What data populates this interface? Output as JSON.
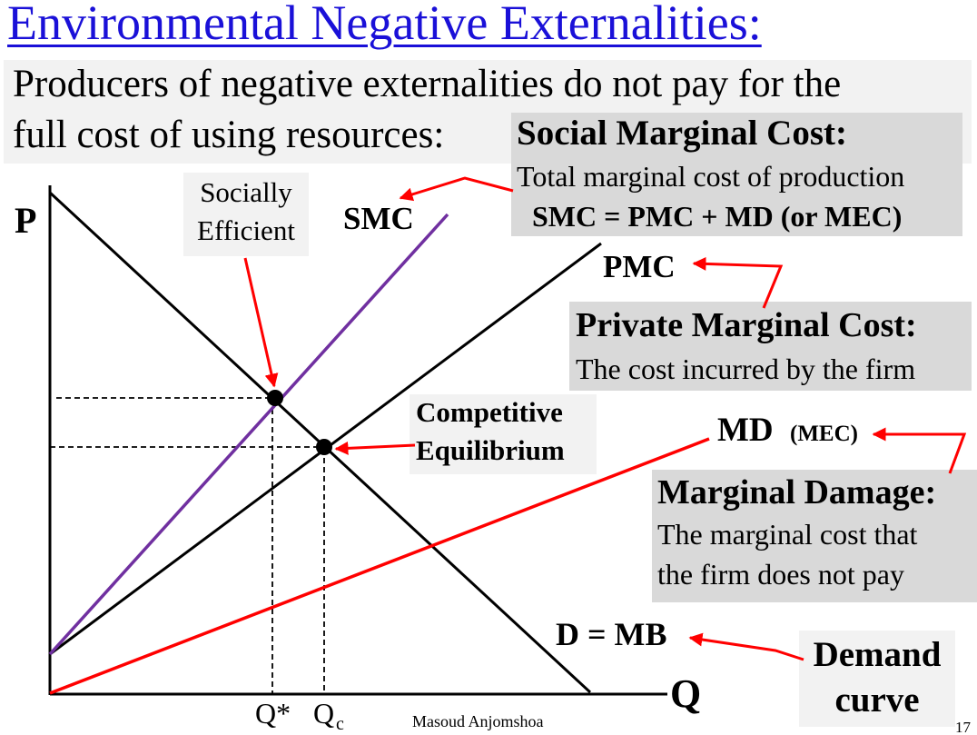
{
  "title": "Environmental Negative Externalities:",
  "subtitle": {
    "line1": "Producers of negative externalities do not pay for the",
    "line2": "full cost of using resources:"
  },
  "smc_box": {
    "heading": "Social Marginal Cost:",
    "line1": "Total marginal cost of production",
    "line2": "SMC = PMC + MD (or MEC)"
  },
  "pmc_box": {
    "heading": "Private Marginal Cost:",
    "line1": "The cost incurred by the firm"
  },
  "md_box": {
    "heading": "Marginal Damage:",
    "line1": "The marginal cost that",
    "line2": "the firm does not pay"
  },
  "demand_box": {
    "line1": "Demand",
    "line2": "curve"
  },
  "socially_efficient": {
    "line1": "Socially",
    "line2": "Efficient"
  },
  "competitive_equilibrium": {
    "line1": "Competitive",
    "line2": "Equilibrium"
  },
  "curve_labels": {
    "smc": "SMC",
    "pmc": "PMC",
    "md": "MD",
    "md_paren": "(MEC)",
    "demand": "D = MB"
  },
  "axes": {
    "y_label": "P",
    "x_label": "Q",
    "q_star": "Q*",
    "q_c": "Q",
    "q_c_sub": "c"
  },
  "footer": {
    "author": "Masoud Anjomshoa",
    "page": "17"
  },
  "colors": {
    "title": "#1a10d8",
    "smc_curve": "#7030a0",
    "md_curve": "#ff0000",
    "arrows": "#ff0000",
    "gray_box": "#d9d9d9",
    "light_box": "#f2f2f2"
  }
}
